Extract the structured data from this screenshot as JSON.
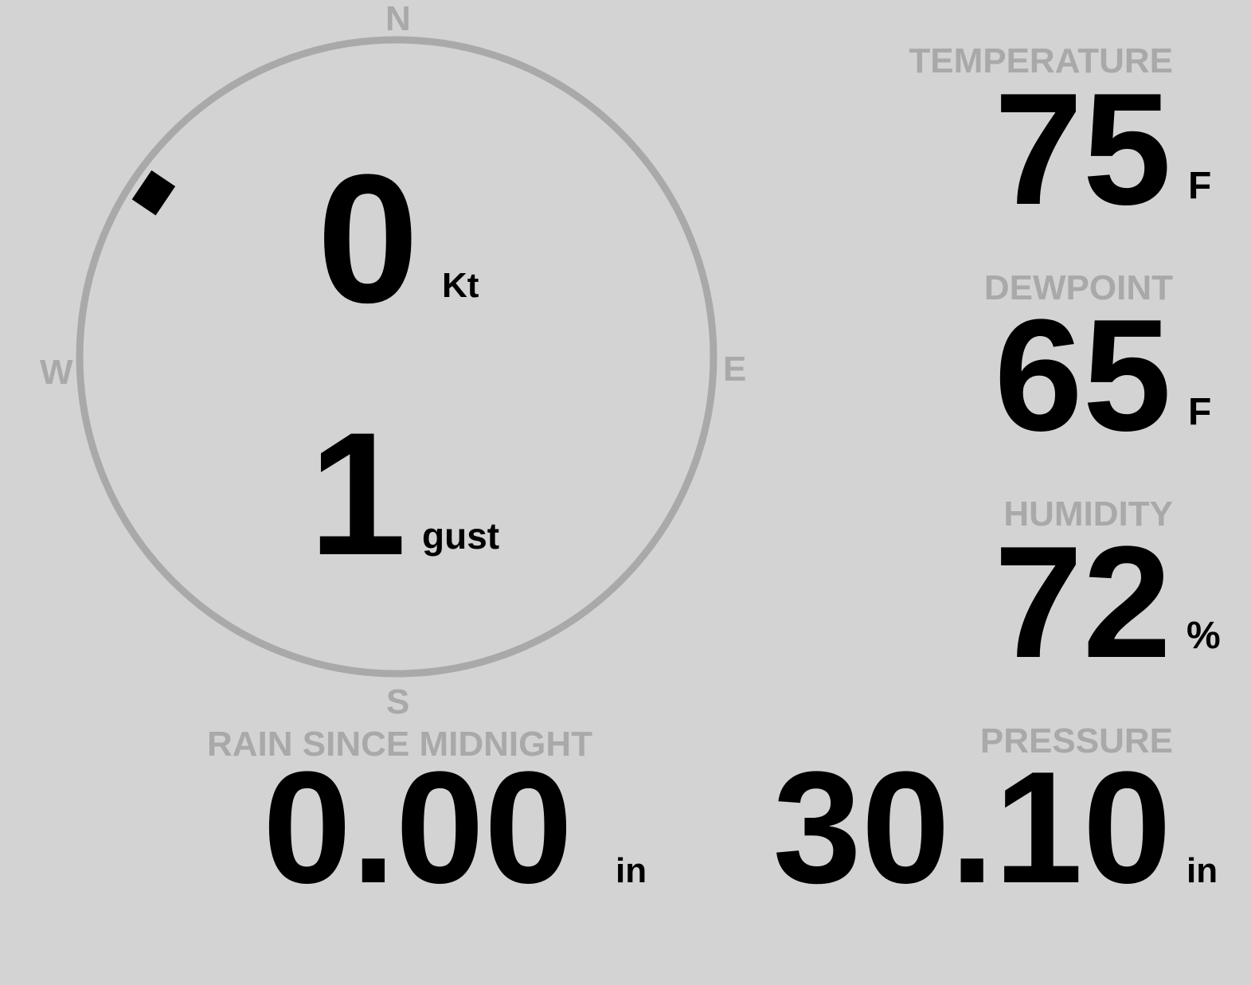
{
  "colors": {
    "background": "#d3d3d3",
    "label": "#a9a9a9",
    "value": "#000000",
    "ring": "#a9a9a9"
  },
  "wind": {
    "compass": {
      "n": "N",
      "e": "E",
      "s": "S",
      "w": "W"
    },
    "direction_deg": 304,
    "speed": "0",
    "speed_unit": "Kt",
    "gust": "1",
    "gust_unit": "gust"
  },
  "temperature": {
    "label": "TEMPERATURE",
    "value": "75",
    "unit": "F"
  },
  "dewpoint": {
    "label": "DEWPOINT",
    "value": "65",
    "unit": "F"
  },
  "humidity": {
    "label": "HUMIDITY",
    "value": "72",
    "unit": "%"
  },
  "rain": {
    "label": "RAIN SINCE MIDNIGHT",
    "value": "0.00",
    "unit": "in"
  },
  "pressure": {
    "label": "PRESSURE",
    "value": "30.10",
    "unit": "in"
  }
}
